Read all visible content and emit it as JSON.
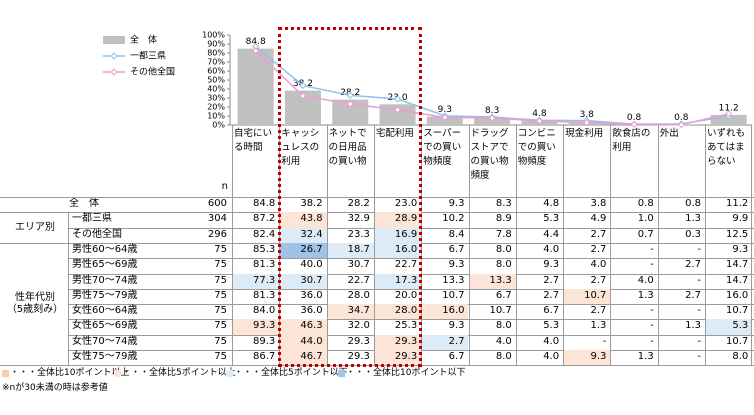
{
  "chart_data": {
    "type": "bar",
    "categories": [
      "自宅にいる時間",
      "キャッシュレスの利用",
      "ネットでの日用品の買い物",
      "宅配利用",
      "スーパーでの買い物頻度",
      "ドラッグストアでの買い物頻度",
      "コンビニでの買い物頻度",
      "現金利用",
      "飲食店の利用",
      "外出",
      "いずれもあてはまらない"
    ],
    "series": [
      {
        "name": "全　体",
        "type": "bar",
        "color": "#c0c0c0",
        "values": [
          84.8,
          38.2,
          28.2,
          23.0,
          9.3,
          8.3,
          4.8,
          3.8,
          0.8,
          0.8,
          11.2
        ],
        "value_labels": [
          "84.8",
          "38.2",
          "28.2",
          "23.0",
          "9.3",
          "8.3",
          "4.8",
          "3.8",
          "0.8",
          "0.8",
          "11.2"
        ]
      },
      {
        "name": "一都三県",
        "type": "line",
        "color": "#8fc1ea",
        "values": [
          87.2,
          43.8,
          32.9,
          28.9,
          10.2,
          8.9,
          5.3,
          4.9,
          1.0,
          1.3,
          9.9
        ]
      },
      {
        "name": "その他全国",
        "type": "line",
        "color": "#f09ad0",
        "values": [
          82.4,
          32.4,
          23.3,
          16.9,
          8.4,
          7.8,
          4.4,
          2.7,
          0.7,
          0.3,
          12.5
        ]
      }
    ],
    "ylim": [
      0,
      100
    ],
    "yticks": [
      {
        "value": 0,
        "label": "0%"
      },
      {
        "value": 10,
        "label": "10%"
      },
      {
        "value": 20,
        "label": "20%"
      },
      {
        "value": 30,
        "label": "30%"
      },
      {
        "value": 40,
        "label": "40%"
      },
      {
        "value": 50,
        "label": "50%"
      },
      {
        "value": 60,
        "label": "60%"
      },
      {
        "value": 70,
        "label": "70%"
      },
      {
        "value": 80,
        "label": "80%"
      },
      {
        "value": 90,
        "label": "90%"
      },
      {
        "value": 100,
        "label": "100%"
      }
    ]
  },
  "table": {
    "n_header": "n",
    "total": {
      "label": "全　体",
      "n": "600",
      "cells": [
        "84.8",
        "38.2",
        "28.2",
        "23.0",
        "9.3",
        "8.3",
        "4.8",
        "3.8",
        "0.8",
        "0.8",
        "11.2"
      ]
    },
    "groups": [
      {
        "label": "エリア別",
        "rows": [
          {
            "label": "一都三県",
            "n": "304",
            "cells": [
              "87.2",
              "43.8",
              "32.9",
              "28.9",
              "10.2",
              "8.9",
              "5.3",
              "4.9",
              "1.0",
              "1.3",
              "9.9"
            ],
            "colors": [
              null,
              "#fce4d6",
              null,
              "#fce4d6",
              null,
              null,
              null,
              null,
              null,
              null,
              null
            ]
          },
          {
            "label": "その他全国",
            "n": "296",
            "cells": [
              "82.4",
              "32.4",
              "23.3",
              "16.9",
              "8.4",
              "7.8",
              "4.4",
              "2.7",
              "0.7",
              "0.3",
              "12.5"
            ],
            "colors": [
              null,
              "#ddebf7",
              null,
              "#ddebf7",
              null,
              null,
              null,
              null,
              null,
              null,
              null
            ]
          }
        ]
      },
      {
        "label": "性年代別\n（5歳刻み）",
        "rows": [
          {
            "label": "男性60～64歳",
            "n": "75",
            "cells": [
              "85.3",
              "26.7",
              "18.7",
              "16.0",
              "6.7",
              "8.0",
              "4.0",
              "2.7",
              "-",
              "-",
              "9.3"
            ],
            "colors": [
              null,
              "#9dc3e6",
              "#ddebf7",
              "#ddebf7",
              null,
              null,
              null,
              null,
              null,
              null,
              null
            ]
          },
          {
            "label": "男性65～69歳",
            "n": "75",
            "cells": [
              "81.3",
              "40.0",
              "30.7",
              "22.7",
              "9.3",
              "8.0",
              "9.3",
              "4.0",
              "-",
              "2.7",
              "14.7"
            ],
            "colors": [
              null,
              null,
              null,
              null,
              null,
              null,
              null,
              null,
              null,
              null,
              null
            ]
          },
          {
            "label": "男性70～74歳",
            "n": "75",
            "cells": [
              "77.3",
              "30.7",
              "22.7",
              "17.3",
              "13.3",
              "13.3",
              "2.7",
              "2.7",
              "4.0",
              "-",
              "14.7"
            ],
            "colors": [
              "#ddebf7",
              "#ddebf7",
              null,
              "#ddebf7",
              null,
              "#fce4d6",
              null,
              null,
              null,
              null,
              null
            ]
          },
          {
            "label": "男性75～79歳",
            "n": "75",
            "cells": [
              "81.3",
              "36.0",
              "28.0",
              "20.0",
              "10.7",
              "6.7",
              "2.7",
              "10.7",
              "1.3",
              "2.7",
              "16.0"
            ],
            "colors": [
              null,
              null,
              null,
              null,
              null,
              null,
              null,
              "#fce4d6",
              null,
              null,
              null
            ]
          },
          {
            "label": "女性60～64歳",
            "n": "75",
            "cells": [
              "84.0",
              "36.0",
              "34.7",
              "28.0",
              "16.0",
              "10.7",
              "6.7",
              "2.7",
              "-",
              "-",
              "10.7"
            ],
            "colors": [
              null,
              null,
              "#fce4d6",
              "#fce4d6",
              "#fce4d6",
              null,
              null,
              null,
              null,
              null,
              null
            ]
          },
          {
            "label": "女性65～69歳",
            "n": "75",
            "cells": [
              "93.3",
              "46.3",
              "32.0",
              "25.3",
              "9.3",
              "8.0",
              "5.3",
              "1.3",
              "-",
              "1.3",
              "5.3"
            ],
            "colors": [
              "#fce4d6",
              "#fce4d6",
              null,
              null,
              null,
              null,
              null,
              null,
              null,
              null,
              "#ddebf7"
            ]
          },
          {
            "label": "女性70～74歳",
            "n": "75",
            "cells": [
              "89.3",
              "44.0",
              "29.3",
              "29.3",
              "2.7",
              "4.0",
              "4.0",
              "-",
              "-",
              "-",
              "10.7"
            ],
            "colors": [
              null,
              "#fce4d6",
              null,
              "#fce4d6",
              "#ddebf7",
              null,
              null,
              null,
              null,
              null,
              null
            ]
          },
          {
            "label": "女性75～79歳",
            "n": "75",
            "cells": [
              "86.7",
              "46.7",
              "29.3",
              "29.3",
              "6.7",
              "8.0",
              "4.0",
              "9.3",
              "1.3",
              "-",
              "8.0"
            ],
            "colors": [
              null,
              "#fce4d6",
              null,
              "#fce4d6",
              null,
              null,
              null,
              "#fce4d6",
              null,
              null,
              null
            ]
          }
        ]
      }
    ]
  },
  "legend": [
    {
      "color": "#f8cbad",
      "label": "・・・全体比10ポイント以上"
    },
    {
      "color": "#fce4d6",
      "label": "・・・全体比5ポイント以上"
    },
    {
      "color": "#ddebf7",
      "label": "・・・全体比5ポイント以下"
    },
    {
      "color": "#9dc3e6",
      "label": "・・・全体比10ポイント以下"
    }
  ],
  "note": "※nが30未満の時は参考値"
}
